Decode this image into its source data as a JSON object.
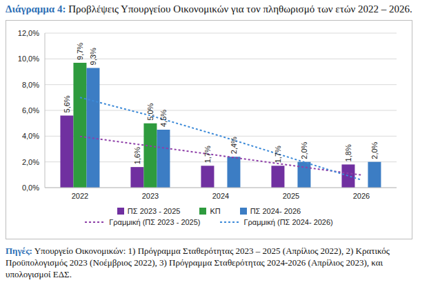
{
  "chart_data": {
    "type": "bar",
    "title": "Διάγραμμα 4: Προβλέψεις Υπουργείου Οικονομικών για τον πληθωρισμό των ετών 2022 – 2026.",
    "source": "Πηγές: Υπουργείο Οικονομικών: 1) Πρόγραμμα Σταθερότητας 2023 – 2025 (Απρίλιος 2022), 2) Κρατικός Προϋπολογισμός 2023 (Νοέμβριος 2022), 3) Πρόγραμμα Σταθερότητας 2024-2026 (Απρίλιος 2023), και υπολογισμοί ΕΔΣ.",
    "categories": [
      "2022",
      "2023",
      "2024",
      "2025",
      "2026"
    ],
    "series": [
      {
        "name": "ΠΣ 2023 - 2025",
        "type": "bar",
        "color": "#7030a0",
        "data_labels": true,
        "values": [
          5.6,
          1.6,
          1.7,
          1.7,
          1.8
        ],
        "value_labels": [
          "5,6%",
          "1,6%",
          "1,7%",
          "1,7%",
          "1,8%"
        ]
      },
      {
        "name": "ΚΠ",
        "type": "bar",
        "color": "#2e9b3e",
        "data_labels": true,
        "values": [
          9.7,
          5.0,
          null,
          null,
          null
        ],
        "value_labels": [
          "9,7%",
          "5,0%",
          null,
          null,
          null
        ]
      },
      {
        "name": "ΠΣ 2024- 2026",
        "type": "bar",
        "color": "#3c7dc4",
        "data_labels": true,
        "values": [
          9.3,
          4.5,
          2.4,
          2.0,
          2.0
        ],
        "value_labels": [
          "9,3%",
          "4,5%",
          "2,4%",
          "2,0%",
          "2,0%"
        ]
      },
      {
        "name": "Γραμμική (ΠΣ 2023 - 2025)",
        "type": "line",
        "color": "#8e3fa8",
        "line_style": "dotted",
        "data_labels": false,
        "values": [
          3.98,
          3.23,
          2.48,
          1.73,
          0.98
        ]
      },
      {
        "name": "Γραμμική (ΠΣ 2024- 2026)",
        "type": "line",
        "color": "#3c8ad8",
        "line_style": "dotted",
        "data_labels": false,
        "values": [
          7.0,
          5.6,
          4.0,
          2.3,
          0.6
        ]
      }
    ],
    "ylim": [
      0,
      12
    ],
    "yticks": [
      {
        "value": 0,
        "label": "0,0%"
      },
      {
        "value": 2,
        "label": "2,0%"
      },
      {
        "value": 4,
        "label": "4,0%"
      },
      {
        "value": 6,
        "label": "6,0%"
      },
      {
        "value": 8,
        "label": "8,0%"
      },
      {
        "value": 10,
        "label": "10,0%"
      },
      {
        "value": 12,
        "label": "12,0%"
      }
    ],
    "grid": true,
    "legend": "bottom"
  }
}
